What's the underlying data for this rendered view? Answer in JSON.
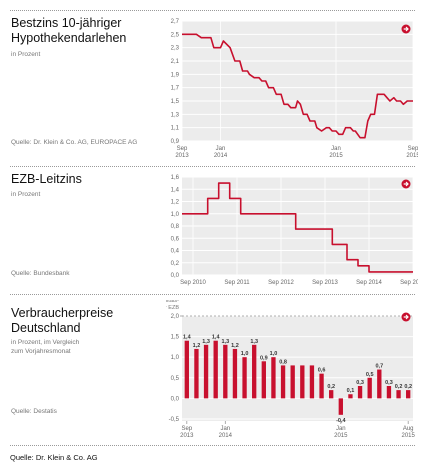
{
  "panels": [
    {
      "title": "Bestzins 10-jähriger\nHypothekendarlehen",
      "subtitle": "in Prozent",
      "source": "Quelle: Dr. Klein & Co. AG, EUROPACE AG"
    },
    {
      "title": "EZB-Leitzins",
      "subtitle": "in Prozent",
      "source": "Quelle: Bundesbank"
    },
    {
      "title": "Verbraucherpreise\nDeutschland",
      "subtitle": "in Prozent, im Vergleich\nzum Vorjahresmonat",
      "source": "Quelle: Destatis"
    }
  ],
  "footer": "Quelle: Dr. Klein & Co. AG",
  "colors": {
    "accent": "#c8102e",
    "plot_bg": "#ececec",
    "grid": "#ffffff"
  },
  "icons": {
    "arrow": "arrow-right-circle-icon"
  },
  "chart_data": [
    {
      "type": "line",
      "y_ticks": [
        "2,7",
        "2,5",
        "2,3",
        "2,1",
        "1,9",
        "1,7",
        "1,5",
        "1,3",
        "1,1",
        "0,9"
      ],
      "ylim": [
        0.9,
        2.7
      ],
      "x_ticks": [
        {
          "label": "Sep\n2013",
          "x": 0
        },
        {
          "label": "Jan\n2014",
          "x": 4
        },
        {
          "label": "Jan\n2015",
          "x": 16
        },
        {
          "label": "Sep\n2015",
          "x": 24
        }
      ],
      "xlim": [
        0,
        24
      ],
      "series": [
        {
          "values": [
            [
              0,
              2.5
            ],
            [
              1.5,
              2.5
            ],
            [
              2,
              2.45
            ],
            [
              3,
              2.45
            ],
            [
              3.3,
              2.3
            ],
            [
              4,
              2.3
            ],
            [
              4.3,
              2.4
            ],
            [
              5,
              2.3
            ],
            [
              5.5,
              2.1
            ],
            [
              6,
              2.1
            ],
            [
              6.3,
              1.95
            ],
            [
              6.8,
              1.95
            ],
            [
              7,
              1.9
            ],
            [
              7.5,
              1.85
            ],
            [
              8,
              1.85
            ],
            [
              8.3,
              1.8
            ],
            [
              8.7,
              1.8
            ],
            [
              9,
              1.7
            ],
            [
              9.5,
              1.7
            ],
            [
              9.8,
              1.6
            ],
            [
              10.3,
              1.6
            ],
            [
              10.6,
              1.45
            ],
            [
              11,
              1.45
            ],
            [
              11.3,
              1.4
            ],
            [
              11.8,
              1.4
            ],
            [
              12,
              1.5
            ],
            [
              12.3,
              1.45
            ],
            [
              12.6,
              1.3
            ],
            [
              13,
              1.3
            ],
            [
              13.3,
              1.2
            ],
            [
              13.8,
              1.2
            ],
            [
              14,
              1.1
            ],
            [
              14.5,
              1.05
            ],
            [
              15,
              1.1
            ],
            [
              15.3,
              1.1
            ],
            [
              15.6,
              1.05
            ],
            [
              16,
              1.05
            ],
            [
              16.3,
              1.0
            ],
            [
              16.7,
              1.0
            ],
            [
              17,
              1.1
            ],
            [
              17.5,
              1.1
            ],
            [
              17.8,
              1.05
            ],
            [
              18,
              1.05
            ],
            [
              18.5,
              0.95
            ],
            [
              19,
              0.95
            ],
            [
              19.3,
              1.2
            ],
            [
              19.6,
              1.3
            ],
            [
              20,
              1.3
            ],
            [
              20.3,
              1.6
            ],
            [
              21,
              1.6
            ],
            [
              21.3,
              1.55
            ],
            [
              21.6,
              1.5
            ],
            [
              22,
              1.55
            ],
            [
              22.3,
              1.5
            ],
            [
              22.7,
              1.5
            ],
            [
              23,
              1.45
            ],
            [
              23.4,
              1.5
            ],
            [
              24,
              1.5
            ]
          ]
        }
      ]
    },
    {
      "type": "line",
      "y_ticks": [
        "1,6",
        "1,4",
        "1,2",
        "1,0",
        "0,8",
        "0,6",
        "0,4",
        "0,2",
        "0,0"
      ],
      "ylim": [
        0,
        1.6
      ],
      "x_ticks": [
        {
          "label": "Sep 2010",
          "x": 0
        },
        {
          "label": "Sep 2011",
          "x": 12
        },
        {
          "label": "Sep 2012",
          "x": 24
        },
        {
          "label": "Sep 2013",
          "x": 36
        },
        {
          "label": "Sep 2014",
          "x": 48
        },
        {
          "label": "Sep 2015",
          "x": 60
        }
      ],
      "xlim": [
        -3,
        60
      ],
      "series": [
        {
          "values": [
            [
              -3,
              1.0
            ],
            [
              4,
              1.0
            ],
            [
              4,
              1.25
            ],
            [
              7,
              1.25
            ],
            [
              7,
              1.5
            ],
            [
              10,
              1.5
            ],
            [
              10,
              1.25
            ],
            [
              13,
              1.25
            ],
            [
              13,
              1.0
            ],
            [
              28,
              1.0
            ],
            [
              28,
              0.75
            ],
            [
              38,
              0.75
            ],
            [
              38,
              0.5
            ],
            [
              42,
              0.5
            ],
            [
              42,
              0.25
            ],
            [
              45,
              0.25
            ],
            [
              45,
              0.15
            ],
            [
              48,
              0.15
            ],
            [
              48,
              0.05
            ],
            [
              60,
              0.05
            ]
          ]
        }
      ]
    },
    {
      "type": "bar",
      "annotation": "Preisstabilitäts-\ngrenze der EZB",
      "reference_line": 2.0,
      "y_ticks": [
        "2,0",
        "1,5",
        "1,0",
        "0,5",
        "0,0",
        "-0,5"
      ],
      "ylim": [
        -0.55,
        2.0
      ],
      "x_ticks": [
        {
          "label": "Sep\n2013",
          "i": 0
        },
        {
          "label": "Jan\n2014",
          "i": 4
        },
        {
          "label": "Jan\n2015",
          "i": 16
        },
        {
          "label": "Aug\n2015",
          "i": 23
        }
      ],
      "categories": [
        "Sep 13",
        "Okt 13",
        "Nov 13",
        "Dez 13",
        "Jan 14",
        "Feb 14",
        "Mär 14",
        "Apr 14",
        "Mai 14",
        "Jun 14",
        "Jul 14",
        "Aug 14",
        "Sep 14",
        "Okt 14",
        "Nov 14",
        "Dez 14",
        "Jan 15",
        "Feb 15",
        "Mär 15",
        "Apr 15",
        "Mai 15",
        "Jun 15",
        "Jul 15",
        "Aug 15"
      ],
      "values": [
        1.4,
        1.2,
        1.3,
        1.4,
        1.3,
        1.2,
        1.0,
        1.3,
        0.9,
        1.0,
        0.8,
        0.8,
        0.8,
        0.8,
        0.6,
        0.2,
        -0.4,
        0.1,
        0.3,
        0.5,
        0.7,
        0.3,
        0.2,
        0.2
      ],
      "labels": [
        "1,4",
        "1,2",
        "1,3",
        "1,4",
        "1,3",
        "1,2",
        "1,0",
        "1,3",
        "0,9",
        "1,0",
        "0,8",
        "",
        "",
        "",
        "0,6",
        "0,2",
        "-0,4",
        "0,1",
        "0,3",
        "0,5",
        "0,7",
        "0,3",
        "0,2",
        "0,2"
      ]
    }
  ]
}
